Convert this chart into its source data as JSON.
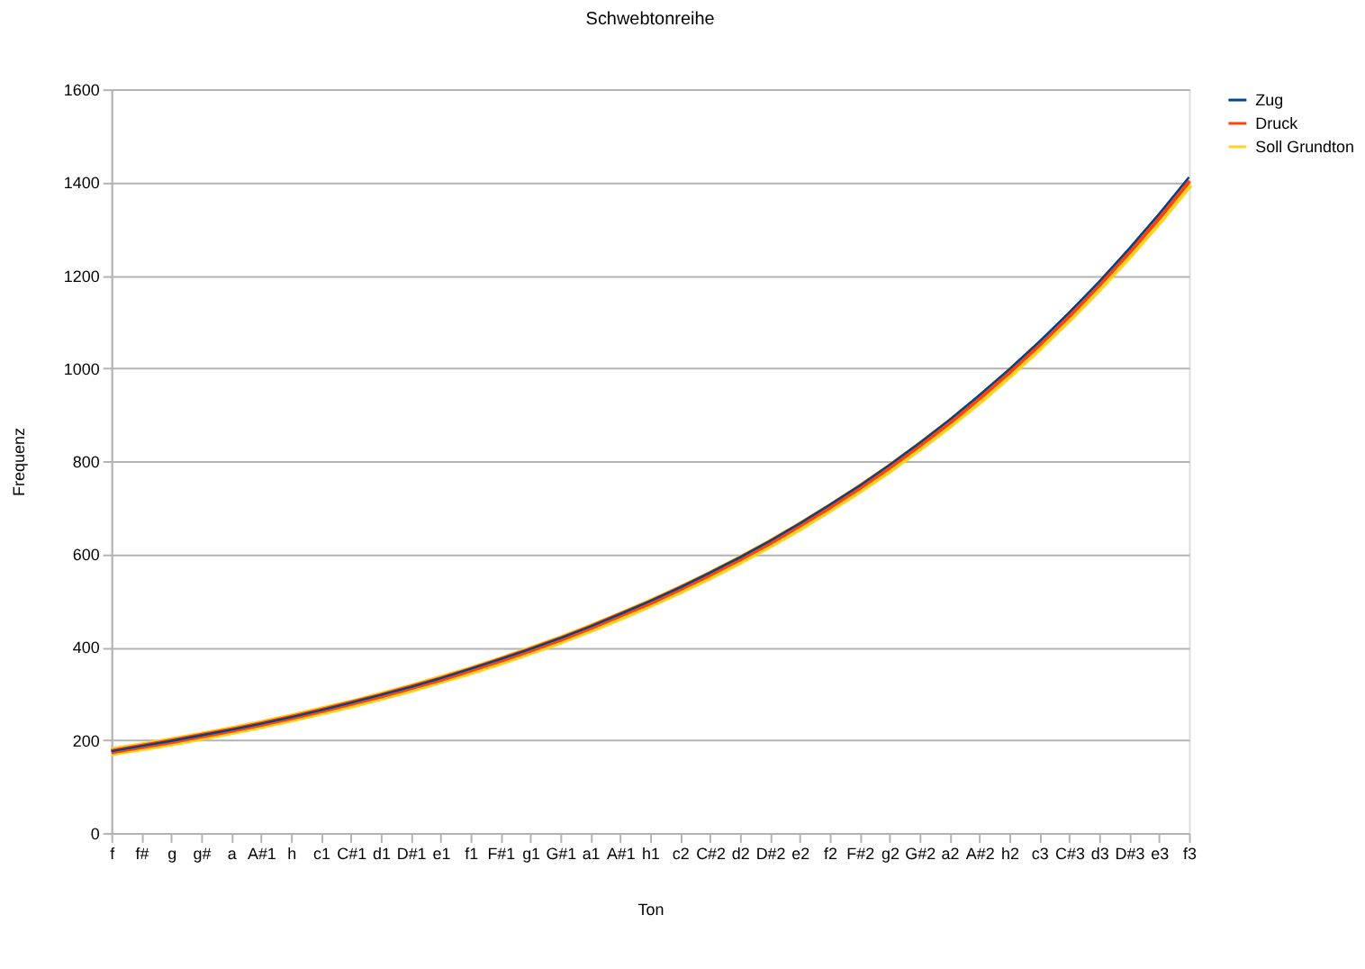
{
  "chart_data": {
    "type": "line",
    "title": "Schwebtonreihe",
    "xlabel": "Ton",
    "ylabel": "Frequenz",
    "categories": [
      "f",
      "f#",
      "g",
      "g#",
      "a",
      "A#1",
      "h",
      "c1",
      "C#1",
      "d1",
      "D#1",
      "e1",
      "f1",
      "F#1",
      "g1",
      "G#1",
      "a1",
      "A#1",
      "h1",
      "c2",
      "C#2",
      "d2",
      "D#2",
      "e2",
      "f2",
      "F#2",
      "g2",
      "G#2",
      "a2",
      "A#2",
      "h2",
      "c3",
      "C#3",
      "d3",
      "D#3",
      "e3",
      "f3"
    ],
    "series": [
      {
        "name": "Zug",
        "color": "#004586",
        "values": [
          176,
          187,
          198,
          210,
          222,
          235,
          249,
          264,
          280,
          297,
          314,
          333,
          353,
          374,
          396,
          419,
          444,
          471,
          499,
          528,
          560,
          593,
          628,
          666,
          706,
          747,
          792,
          839,
          889,
          942,
          998,
          1057,
          1120,
          1186,
          1257,
          1332,
          1411
        ]
      },
      {
        "name": "Druck",
        "color": "#ff420e",
        "values": [
          175,
          186,
          197,
          209,
          221,
          234,
          248,
          263,
          279,
          295,
          313,
          331,
          351,
          372,
          394,
          417,
          442,
          469,
          496,
          526,
          557,
          590,
          625,
          663,
          702,
          744,
          788,
          835,
          884,
          937,
          993,
          1052,
          1114,
          1181,
          1251,
          1325,
          1404
        ]
      },
      {
        "name": "Soll Grundton",
        "color": "#ffd320",
        "values": [
          175,
          185,
          196,
          208,
          220,
          233,
          247,
          262,
          277,
          294,
          311,
          330,
          349,
          370,
          392,
          415,
          440,
          466,
          494,
          523,
          554,
          587,
          622,
          659,
          699,
          740,
          784,
          831,
          880,
          932,
          988,
          1047,
          1109,
          1175,
          1245,
          1319,
          1397
        ]
      }
    ],
    "ylim": [
      0,
      1600
    ],
    "yticks": [
      0,
      200,
      400,
      600,
      800,
      1000,
      1200,
      1400,
      1600
    ],
    "grid": "y",
    "legend": "right",
    "marker": "none",
    "line_style": "solid"
  }
}
